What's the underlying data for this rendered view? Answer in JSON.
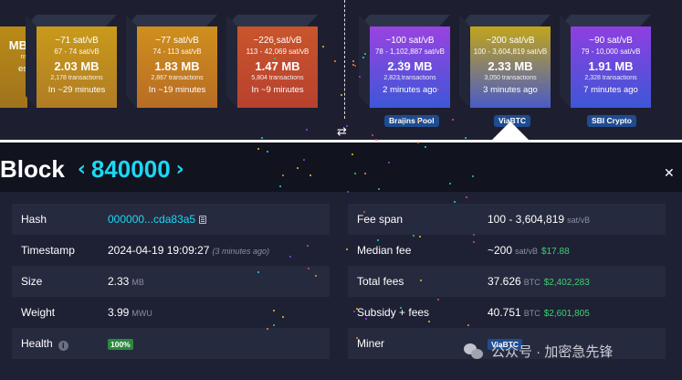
{
  "pending_blocks": [
    {
      "fee": "",
      "range": "",
      "size": "MB",
      "tx": "ns",
      "time": "es",
      "color_top": "#b98a17",
      "color_bottom": "#a0731d"
    },
    {
      "fee": "~71 sat/vB",
      "range": "67 - 74 sat/vB",
      "size": "2.03 MB",
      "tx": "2,178 transactions",
      "time": "In ~29 minutes",
      "color_top": "#c99a1a",
      "color_bottom": "#b07c24"
    },
    {
      "fee": "~77 sat/vB",
      "range": "74 - 113 sat/vB",
      "size": "1.83 MB",
      "tx": "2,867 transactions",
      "time": "In ~19 minutes",
      "color_top": "#cf8f1d",
      "color_bottom": "#b86c25"
    },
    {
      "fee": "~226 sat/vB",
      "range": "113 - 42,069 sat/vB",
      "size": "1.47 MB",
      "tx": "5,804 transactions",
      "time": "In ~9 minutes",
      "color_top": "#c9552c",
      "color_bottom": "#b8412e"
    }
  ],
  "mined_blocks": [
    {
      "fee": "~100 sat/vB",
      "range": "78 - 1,102,887 sat/vB",
      "size": "2.39 MB",
      "tx": "2,823 transactions",
      "time": "2 minutes ago",
      "pool": "Braiins Pool",
      "color_top": "#9a43e0",
      "color_bottom": "#3d57d8"
    },
    {
      "fee": "~200 sat/vB",
      "range": "100 - 3,604,819 sat/vB",
      "size": "2.33 MB",
      "tx": "3,050 transactions",
      "time": "3 minutes ago",
      "pool": "ViaBTC",
      "color_top": "#c2a51b",
      "color_bottom": "#4a5bc7"
    },
    {
      "fee": "~90 sat/vB",
      "range": "79 - 10,000 sat/vB",
      "size": "1.91 MB",
      "tx": "2,328 transactions",
      "time": "7 minutes ago",
      "pool": "SBI Crypto",
      "color_top": "#8e3fe0",
      "color_bottom": "#3e57d6"
    }
  ],
  "header": {
    "block_word": "Block",
    "prev_arrow": "‹",
    "next_arrow": "›",
    "height": "840000",
    "close": "✕",
    "swap": "⇄"
  },
  "details_left": {
    "hash_label": "Hash",
    "hash_value": "000000...cda83a5",
    "timestamp_label": "Timestamp",
    "timestamp_value": "2024-04-19 19:09:27",
    "timestamp_relative": "(3 minutes ago)",
    "size_label": "Size",
    "size_value": "2.33",
    "size_unit": "MB",
    "weight_label": "Weight",
    "weight_value": "3.99",
    "weight_unit": "MWU",
    "health_label": "Health",
    "health_info": "i",
    "health_value": "100%"
  },
  "details_right": {
    "fee_span_label": "Fee span",
    "fee_span_value": "100 - 3,604,819",
    "fee_span_unit": "sat/vB",
    "median_fee_label": "Median fee",
    "median_fee_value": "~200",
    "median_fee_unit": "sat/vB",
    "median_fee_fiat": "$17.88",
    "total_fees_label": "Total fees",
    "total_fees_value": "37.626",
    "total_fees_unit": "BTC",
    "total_fees_fiat": "$2,402,283",
    "subsidy_label": "Subsidy + fees",
    "subsidy_value": "40.751",
    "subsidy_unit": "BTC",
    "subsidy_fiat": "$2,601,805",
    "miner_label": "Miner",
    "miner_value": "ViaBTC"
  },
  "watermark": {
    "text": "公众号 · 加密急先锋"
  },
  "colors": {
    "accent": "#1bd8f4",
    "green": "#3bd16f",
    "panel": "#1e2134",
    "row_shade": "#262a3e"
  }
}
